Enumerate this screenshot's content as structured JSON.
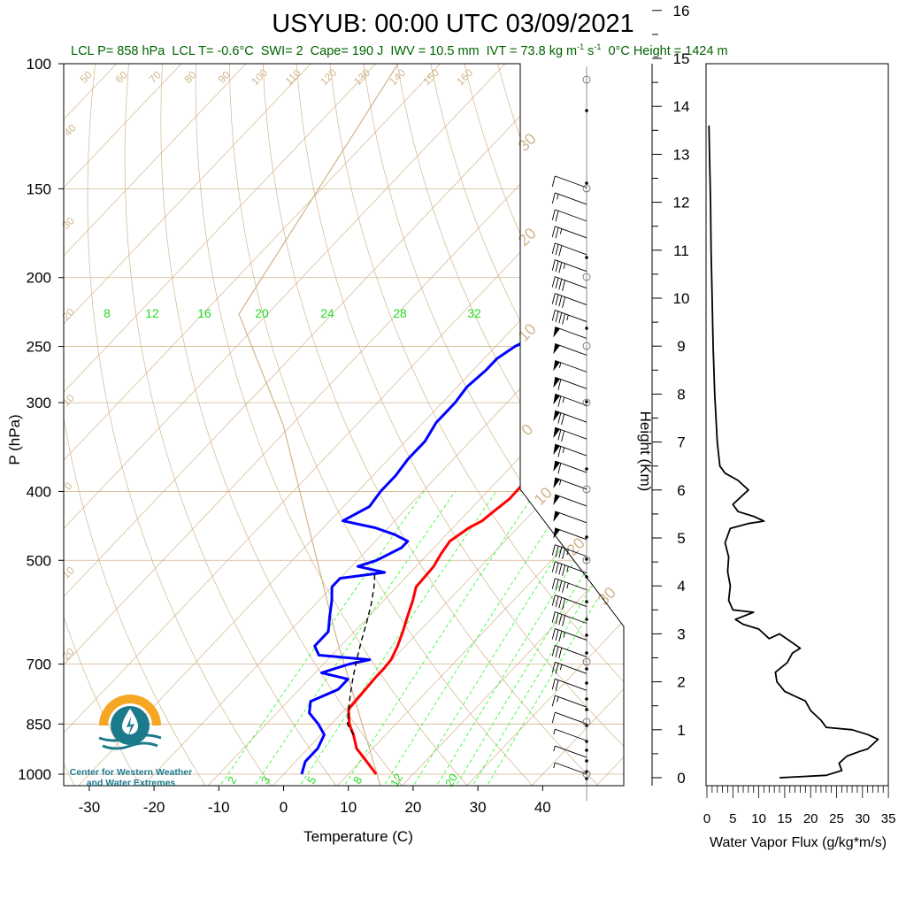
{
  "title": "USYUB: 00:00 UTC 03/09/2021",
  "subtitle": {
    "lcl_p": "LCL P= 858 hPa",
    "lcl_t": "LCL T= -0.6°C",
    "swi": "SWI= 2",
    "cape": "Cape= 190 J",
    "iwv": "IWV = 10.5 mm",
    "ivt_main": "IVT = 73.8 kg m",
    "ivt_exp1": "-1",
    "ivt_s": " s",
    "ivt_exp2": "-1",
    "zero_c_height": "0°C Height = 1424 m"
  },
  "logo": {
    "line1": "Center for Western Weather",
    "line2": "and Water Extremes"
  },
  "colors": {
    "temperature": "#ff0000",
    "dewpoint": "#0000ff",
    "parcel": "#000000",
    "isotherm": "#d2b48c",
    "mixing_ratio": "#00ff00",
    "mixing_label": "#22dd22",
    "logo_orange": "#f5a623",
    "logo_teal": "#1b7a8c",
    "subtitle": "#006400"
  },
  "chart_data": [
    {
      "type": "line",
      "subtype": "skew-t",
      "xlabel": "Temperature (C)",
      "ylabel": "P (hPa)",
      "x_ticks": [
        -30,
        -20,
        -10,
        0,
        10,
        20,
        30,
        40
      ],
      "y_ticks": [
        1000,
        850,
        700,
        500,
        400,
        300,
        250,
        200,
        150,
        100
      ],
      "y_scale": "log",
      "xlim": [
        -34,
        50
      ],
      "ylim": [
        1020,
        100
      ],
      "isotherm_labels": [
        "50",
        "60",
        "70",
        "80",
        "90",
        "100",
        "110",
        "120",
        "130",
        "140",
        "150",
        "160",
        "40",
        "30",
        "20",
        "10",
        "0",
        "10",
        "20",
        "30",
        "20",
        "10",
        "0",
        "10",
        "20",
        "30"
      ],
      "mixing_ratio_labels_top": [
        "8",
        "12",
        "16",
        "20",
        "24",
        "28",
        "32"
      ],
      "mixing_ratio_labels_bottom": [
        "2",
        "3",
        "5",
        "8",
        "12",
        "20"
      ],
      "series": [
        {
          "name": "temperature",
          "points": [
            [
              14.3,
              1000
            ],
            [
              11,
              960
            ],
            [
              7.5,
              920
            ],
            [
              5,
              880
            ],
            [
              2.8,
              850
            ],
            [
              0.5,
              810
            ],
            [
              0.2,
              760
            ],
            [
              0,
              730
            ],
            [
              0,
              710
            ],
            [
              -0.2,
              690
            ],
            [
              -1.2,
              660
            ],
            [
              -2.5,
              630
            ],
            [
              -4,
              600
            ],
            [
              -5.5,
              570
            ],
            [
              -7,
              545
            ],
            [
              -7.2,
              520
            ],
            [
              -7.3,
              510
            ],
            [
              -8,
              490
            ],
            [
              -8.5,
              470
            ],
            [
              -7.5,
              450
            ],
            [
              -6.5,
              440
            ],
            [
              -6.2,
              430
            ],
            [
              -5.5,
              410
            ],
            [
              -5.6,
              390
            ],
            [
              -6,
              370
            ],
            [
              -6.8,
              350
            ],
            [
              -6.7,
              320
            ],
            [
              -7,
              300
            ],
            [
              -7.6,
              280
            ],
            [
              -6.5,
              265
            ],
            [
              -5.8,
              255
            ],
            [
              -4.5,
              250
            ],
            [
              -4,
              240
            ],
            [
              -3.5,
              230
            ],
            [
              -3,
              220
            ],
            [
              -2.5,
              210
            ],
            [
              -2,
              200
            ],
            [
              0,
              190
            ],
            [
              1,
              180
            ],
            [
              3,
              170
            ],
            [
              6,
              165
            ],
            [
              8,
              160
            ],
            [
              9.5,
              155
            ],
            [
              10.5,
              150
            ]
          ]
        },
        {
          "name": "dewpoint",
          "points": [
            [
              2.8,
              1000
            ],
            [
              1.5,
              960
            ],
            [
              1.5,
              920
            ],
            [
              0.5,
              880
            ],
            [
              -2,
              850
            ],
            [
              -5,
              820
            ],
            [
              -6.5,
              790
            ],
            [
              -4,
              760
            ],
            [
              -4,
              735
            ],
            [
              -9,
              720
            ],
            [
              -6,
              700
            ],
            [
              -3.5,
              690
            ],
            [
              -12,
              680
            ],
            [
              -14,
              660
            ],
            [
              -14,
              630
            ],
            [
              -16,
              600
            ],
            [
              -18,
              570
            ],
            [
              -20,
              545
            ],
            [
              -20,
              530
            ],
            [
              -14,
              520
            ],
            [
              -19,
              510
            ],
            [
              -17,
              500
            ],
            [
              -16,
              490
            ],
            [
              -15,
              480
            ],
            [
              -15,
              470
            ],
            [
              -18,
              460
            ],
            [
              -22,
              450
            ],
            [
              -28,
              440
            ],
            [
              -26,
              420
            ],
            [
              -26.5,
              400
            ],
            [
              -26.5,
              380
            ],
            [
              -27,
              360
            ],
            [
              -27,
              340
            ],
            [
              -28,
              320
            ],
            [
              -28,
              300
            ],
            [
              -28.5,
              285
            ],
            [
              -28,
              270
            ],
            [
              -28,
              260
            ],
            [
              -27,
              250
            ],
            [
              -25,
              240
            ],
            [
              -24,
              230
            ],
            [
              -23.5,
              220
            ],
            [
              -23.5,
              210
            ],
            [
              -23.5,
              200
            ],
            [
              -23.5,
              190
            ],
            [
              -23.5,
              180
            ],
            [
              -22,
              170
            ],
            [
              -20,
              165
            ],
            [
              -18,
              160
            ],
            [
              -17,
              155
            ],
            [
              -17,
              150
            ]
          ]
        },
        {
          "name": "parcel",
          "points": [
            [
              5,
              880
            ],
            [
              2.5,
              850
            ],
            [
              0.5,
              810
            ],
            [
              -1.5,
              770
            ],
            [
              -3.5,
              730
            ],
            [
              -5.5,
              690
            ],
            [
              -7.5,
              650
            ],
            [
              -9.5,
              610
            ],
            [
              -11.5,
              575
            ],
            [
              -13.5,
              545
            ],
            [
              -15.5,
              520
            ]
          ]
        }
      ],
      "wind_barbs": {
        "speed_kt": [
          5,
          5,
          5,
          10,
          15,
          20,
          25,
          30,
          35,
          40,
          40,
          45,
          45,
          45,
          50,
          50,
          50,
          55,
          60,
          65,
          70,
          70,
          65,
          60,
          55,
          50,
          50,
          45,
          40,
          40,
          35,
          30,
          25,
          20,
          15,
          10
        ],
        "direction_deg": [
          180,
          190,
          200,
          210,
          220,
          230,
          240,
          250,
          250,
          255,
          255,
          260,
          260,
          260,
          265,
          265,
          265,
          265,
          270,
          270,
          270,
          270,
          270,
          270,
          270,
          270,
          270,
          270,
          265,
          265,
          260,
          260,
          255,
          250,
          245,
          240
        ]
      }
    },
    {
      "type": "line",
      "xlabel": "Water Vapor Flux (g/kg*m/s)",
      "ylabel": "Height (Km)",
      "x_ticks": [
        0,
        5,
        10,
        15,
        20,
        25,
        30,
        35
      ],
      "y_ticks": [
        0,
        1,
        2,
        3,
        4,
        5,
        6,
        7,
        8,
        9,
        10,
        11,
        12,
        13,
        14,
        15,
        16
      ],
      "xlim": [
        0,
        35
      ],
      "ylim": [
        0,
        16.5
      ],
      "series": [
        {
          "name": "water_vapor_flux",
          "points": [
            [
              14,
              0
            ],
            [
              23,
              0.05
            ],
            [
              26,
              0.15
            ],
            [
              25.5,
              0.3
            ],
            [
              27,
              0.45
            ],
            [
              29.5,
              0.55
            ],
            [
              31,
              0.6
            ],
            [
              33,
              0.8
            ],
            [
              31,
              0.9
            ],
            [
              28,
              1
            ],
            [
              23,
              1.05
            ],
            [
              22,
              1.2
            ],
            [
              20,
              1.4
            ],
            [
              19,
              1.6
            ],
            [
              17,
              1.7
            ],
            [
              15,
              1.8
            ],
            [
              13.5,
              2
            ],
            [
              13.2,
              2.2
            ],
            [
              15.5,
              2.4
            ],
            [
              16.5,
              2.6
            ],
            [
              18,
              2.7
            ],
            [
              16,
              2.85
            ],
            [
              14,
              3
            ],
            [
              12,
              2.9
            ],
            [
              10,
              3.1
            ],
            [
              7,
              3.2
            ],
            [
              5.5,
              3.3
            ],
            [
              9,
              3.45
            ],
            [
              5,
              3.5
            ],
            [
              4.2,
              3.7
            ],
            [
              4.5,
              4.0
            ],
            [
              4,
              4.3
            ],
            [
              4.2,
              4.6
            ],
            [
              3.5,
              4.9
            ],
            [
              4.5,
              5.2
            ],
            [
              8,
              5.3
            ],
            [
              11,
              5.35
            ],
            [
              9,
              5.45
            ],
            [
              6,
              5.55
            ],
            [
              5,
              5.7
            ],
            [
              7,
              5.9
            ],
            [
              8,
              6
            ],
            [
              6,
              6.2
            ],
            [
              3.5,
              6.35
            ],
            [
              2.5,
              6.5
            ],
            [
              2,
              7
            ],
            [
              1.5,
              8
            ],
            [
              1.2,
              9
            ],
            [
              1,
              10
            ],
            [
              0.8,
              11
            ],
            [
              0.7,
              12
            ],
            [
              0.5,
              13
            ],
            [
              0.4,
              13.6
            ]
          ]
        }
      ]
    }
  ]
}
